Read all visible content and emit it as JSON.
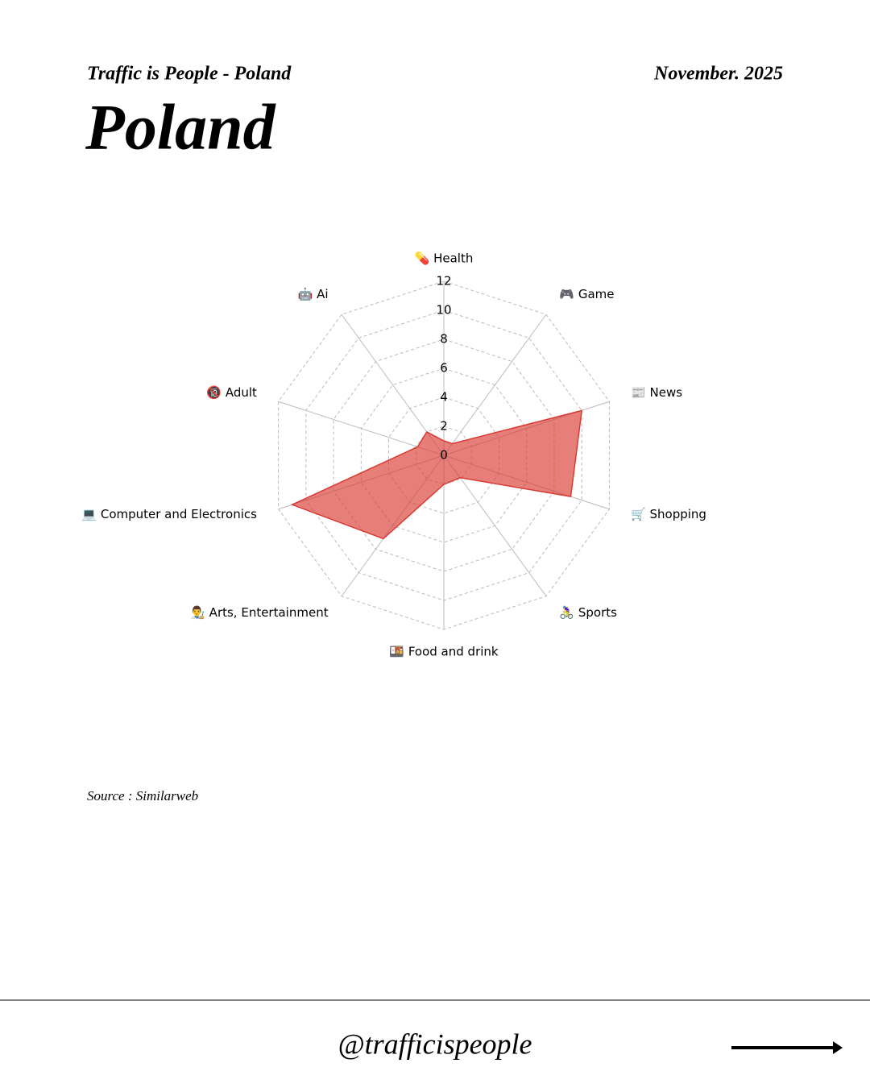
{
  "header": {
    "brand": "Traffic is People - Poland",
    "date": "November. 2025",
    "title": "Poland"
  },
  "chart_data": {
    "type": "radar",
    "categories": [
      "💊 Health",
      "🎮 Game",
      "📰 News",
      "🛒 Shopping",
      "🚴‍♀️ Sports",
      "🍱 Food and drink",
      "👨‍🎨 Arts, Entertainment",
      "💻 Computer and Electronics",
      "🔞 Adult",
      "🤖 Ai"
    ],
    "values": [
      1.0,
      1.0,
      10.0,
      9.2,
      1.9,
      2.0,
      7.1,
      11.0,
      1.9,
      2.0
    ],
    "color": "#d93a32",
    "rlim": [
      0,
      12
    ],
    "rticks": [
      0,
      2,
      4,
      6,
      8,
      10,
      12
    ],
    "grid": true
  },
  "source": "Source : Similarweb",
  "footer": {
    "handle": "@trafficispeople"
  }
}
